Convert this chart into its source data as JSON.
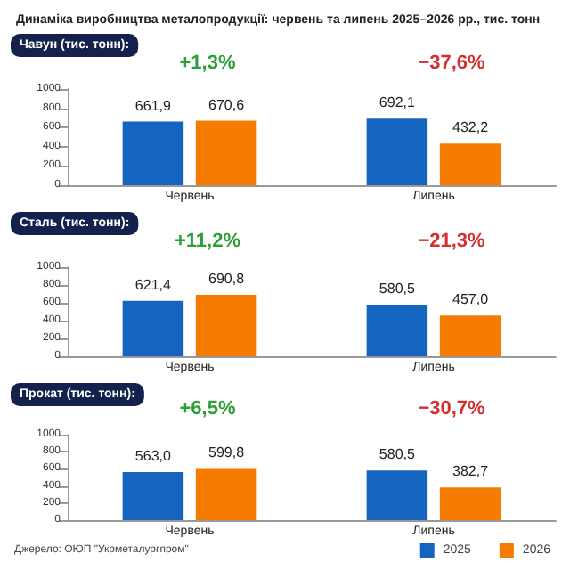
{
  "chart_data": [
    {
      "type": "bar",
      "title": "Динаміка виробництва металопродукції: червень та липень 2025–2026 рр., тис. тонн",
      "subtitle": "Чавун (тис. тонн):",
      "categories": [
        "Червень",
        "Липень"
      ],
      "series": [
        {
          "color": "#1565c0",
          "values": [
            661.9,
            692.1
          ],
          "value_labels": [
            "661,9",
            "692,1"
          ]
        },
        {
          "color": "#f57c00",
          "values": [
            670.6,
            432.2
          ],
          "value_labels": [
            "670,6",
            "432,2"
          ]
        }
      ],
      "annotations": [
        "+1,3%",
        "−37,6%"
      ],
      "ylim": [
        0,
        1000
      ],
      "yticks": [
        0,
        200,
        400,
        600,
        800,
        1000
      ],
      "grid": false,
      "legend": false
    },
    {
      "type": "bar",
      "subtitle": "Сталь (тис. тонн):",
      "categories": [
        "Червень",
        "Липень"
      ],
      "series": [
        {
          "color": "#1565c0",
          "values": [
            621.4,
            580.5
          ],
          "value_labels": [
            "621,4",
            "580,5"
          ]
        },
        {
          "color": "#f57c00",
          "values": [
            690.8,
            457.0
          ],
          "value_labels": [
            "690,8",
            "457,0"
          ]
        }
      ],
      "annotations": [
        "+11,2%",
        "−21,3%"
      ],
      "ylim": [
        0,
        1000
      ],
      "yticks": [
        0,
        200,
        400,
        600,
        800,
        1000
      ],
      "grid": false,
      "legend": false
    },
    {
      "type": "bar",
      "subtitle": "Прокат (тис. тонн):",
      "categories": [
        "Червень",
        "Липень"
      ],
      "series": [
        {
          "name": "2025",
          "color": "#1565c0",
          "values": [
            563.0,
            580.5
          ],
          "value_labels": [
            "563,0",
            "580,5"
          ]
        },
        {
          "name": "2026",
          "color": "#f57c00",
          "values": [
            599.8,
            382.7
          ],
          "value_labels": [
            "599,8",
            "382,7"
          ]
        }
      ],
      "annotations": [
        "+6,5%",
        "−30,7%",
        "Джерело: ОЮП \"Укрметалургпром\""
      ],
      "ylim": [
        0,
        1000
      ],
      "yticks": [
        0,
        200,
        400,
        600,
        800,
        1000
      ],
      "grid": false,
      "legend": "bottom right"
    }
  ]
}
